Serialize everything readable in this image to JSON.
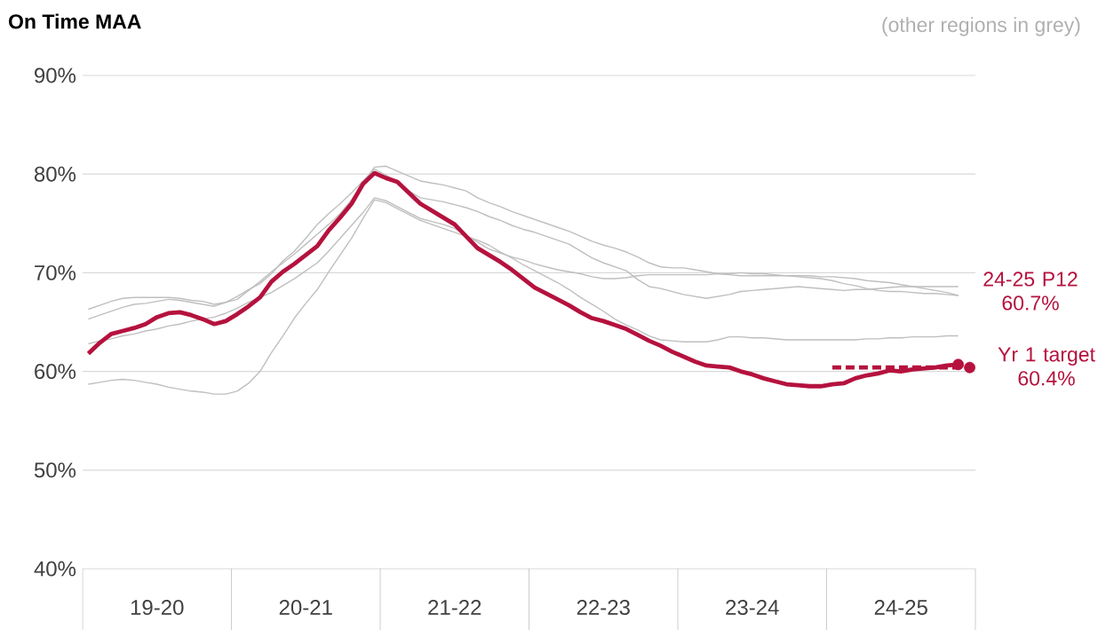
{
  "chart_data": {
    "type": "line",
    "title": "On Time MAA",
    "categories": [
      null,
      null,
      null,
      null,
      null,
      null,
      "19-20",
      null,
      null,
      null,
      null,
      null,
      null,
      null,
      null,
      null,
      null,
      null,
      null,
      "20-21",
      null,
      null,
      null,
      null,
      null,
      null,
      null,
      null,
      null,
      null,
      null,
      null,
      "21-22",
      null,
      null,
      null,
      null,
      null,
      null,
      null,
      null,
      null,
      null,
      null,
      null,
      "22-23",
      null,
      null,
      null,
      null,
      null,
      null,
      null,
      null,
      null,
      null,
      null,
      null,
      "23-24",
      null,
      null,
      null,
      null,
      null,
      null,
      null,
      null,
      null,
      null,
      null,
      null,
      "24-25",
      null,
      null,
      null,
      null,
      null,
      null
    ],
    "ylim": [
      40,
      90
    ],
    "yticks": [
      {
        "value": 40,
        "label": "40%"
      },
      {
        "value": 50,
        "label": "50%"
      },
      {
        "value": 60,
        "label": "60%"
      },
      {
        "value": 70,
        "label": "70%"
      },
      {
        "value": 80,
        "label": "80%"
      },
      {
        "value": 90,
        "label": "90%"
      }
    ],
    "grid": "y",
    "series": [
      {
        "color": "#bfbfbf",
        "values": [
          66.3,
          66.7,
          67.1,
          67.4,
          67.5,
          67.5,
          67.5,
          67.5,
          67.4,
          67.2,
          67.1,
          66.8,
          67.0,
          67.3,
          68.2,
          69.1,
          70.1,
          71.0,
          71.9,
          72.9,
          73.9,
          74.9,
          76.0,
          77.4,
          79.1,
          80.7,
          80.8,
          80.3,
          79.8,
          79.3,
          79.1,
          78.9,
          78.6,
          78.3,
          77.6,
          77.1,
          76.7,
          76.2,
          75.8,
          75.4,
          75.0,
          74.6,
          74.2,
          73.7,
          73.2,
          72.8,
          72.5,
          72.1,
          71.6,
          71.0,
          70.6,
          70.5,
          70.5,
          70.3,
          70.1,
          69.9,
          69.8,
          69.7,
          69.7,
          69.7,
          69.7,
          69.7,
          69.7,
          69.7,
          69.6,
          69.6,
          69.5,
          69.4,
          69.2,
          69.1,
          69.0,
          68.8,
          68.6,
          68.4,
          68.2,
          68.0,
          67.7,
          null
        ]
      },
      {
        "color": "#bfbfbf",
        "values": [
          65.3,
          65.7,
          66.1,
          66.5,
          66.8,
          66.9,
          67.1,
          67.3,
          67.2,
          67.0,
          66.8,
          66.6,
          67.0,
          67.6,
          68.3,
          68.9,
          69.9,
          71.2,
          72.2,
          73.5,
          74.9,
          76.0,
          77.0,
          78.1,
          79.3,
          80.5,
          79.9,
          79.1,
          78.3,
          77.6,
          77.4,
          77.2,
          76.9,
          76.6,
          76.2,
          75.7,
          75.3,
          74.8,
          74.4,
          74.1,
          73.7,
          73.3,
          72.9,
          72.2,
          71.5,
          71.0,
          70.6,
          70.2,
          69.3,
          68.6,
          68.4,
          68.1,
          67.8,
          67.6,
          67.4,
          67.6,
          67.8,
          68.1,
          68.2,
          68.3,
          68.4,
          68.5,
          68.6,
          68.5,
          68.4,
          68.3,
          68.2,
          68.3,
          68.3,
          68.4,
          68.5,
          68.6,
          68.6,
          68.6,
          68.6,
          68.6,
          68.6,
          null
        ]
      },
      {
        "color": "#bfbfbf",
        "values": [
          62.8,
          63.1,
          63.3,
          63.6,
          63.8,
          64.1,
          64.3,
          64.6,
          64.8,
          65.1,
          65.3,
          65.5,
          65.9,
          66.4,
          67.0,
          67.5,
          68.0,
          68.7,
          69.4,
          70.2,
          71.0,
          72.2,
          73.5,
          74.8,
          76.1,
          77.6,
          77.3,
          76.7,
          76.1,
          75.5,
          75.2,
          74.9,
          74.5,
          73.8,
          73.1,
          72.4,
          72.0,
          71.6,
          71.3,
          70.9,
          70.6,
          70.3,
          70.1,
          69.9,
          69.6,
          69.4,
          69.4,
          69.5,
          69.7,
          69.8,
          69.8,
          69.8,
          69.8,
          69.8,
          69.8,
          69.9,
          69.9,
          70.0,
          69.9,
          69.9,
          69.8,
          69.7,
          69.6,
          69.5,
          69.4,
          69.2,
          68.9,
          68.7,
          68.4,
          68.2,
          68.1,
          68.1,
          68.0,
          67.9,
          67.9,
          67.8,
          67.7,
          null
        ]
      },
      {
        "color": "#bfbfbf",
        "values": [
          58.7,
          58.9,
          59.1,
          59.2,
          59.1,
          58.9,
          58.7,
          58.4,
          58.2,
          58.0,
          57.9,
          57.7,
          57.7,
          58.0,
          58.8,
          60.0,
          61.9,
          63.6,
          65.4,
          66.9,
          68.3,
          70.1,
          71.8,
          73.5,
          75.5,
          77.4,
          77.1,
          76.5,
          75.9,
          75.3,
          74.9,
          74.5,
          74.1,
          73.7,
          73.3,
          72.8,
          72.1,
          71.5,
          70.8,
          70.2,
          69.6,
          69.0,
          68.3,
          67.5,
          66.8,
          66.1,
          65.3,
          64.7,
          64.2,
          63.6,
          63.2,
          63.1,
          63.0,
          63.0,
          63.0,
          63.2,
          63.5,
          63.5,
          63.4,
          63.4,
          63.3,
          63.2,
          63.2,
          63.2,
          63.2,
          63.2,
          63.2,
          63.2,
          63.3,
          63.3,
          63.4,
          63.4,
          63.5,
          63.5,
          63.5,
          63.6,
          63.6,
          null
        ]
      },
      {
        "color": "#b5123e",
        "values": [
          61.8,
          62.9,
          63.8,
          64.1,
          64.4,
          64.8,
          65.5,
          65.9,
          66.0,
          65.7,
          65.3,
          64.8,
          65.1,
          65.8,
          66.6,
          67.5,
          69.1,
          70.1,
          70.9,
          71.8,
          72.7,
          74.3,
          75.6,
          77.0,
          79.0,
          80.1,
          79.6,
          79.2,
          78.1,
          77.0,
          76.3,
          75.6,
          74.9,
          73.7,
          72.5,
          71.8,
          71.1,
          70.3,
          69.4,
          68.5,
          67.9,
          67.3,
          66.7,
          66.0,
          65.4,
          65.1,
          64.7,
          64.3,
          63.7,
          63.1,
          62.6,
          62.0,
          61.5,
          61.0,
          60.6,
          60.5,
          60.4,
          60.0,
          59.7,
          59.3,
          59.0,
          58.7,
          58.6,
          58.5,
          58.5,
          58.7,
          58.8,
          59.3,
          59.6,
          59.8,
          60.1,
          60.0,
          60.2,
          60.3,
          60.4,
          60.6,
          60.7,
          null
        ]
      },
      {
        "type": "scatter",
        "color": "#b5123e",
        "values": [
          null,
          null,
          null,
          null,
          null,
          null,
          null,
          null,
          null,
          null,
          null,
          null,
          null,
          null,
          null,
          null,
          null,
          null,
          null,
          null,
          null,
          null,
          null,
          null,
          null,
          null,
          null,
          null,
          null,
          null,
          null,
          null,
          null,
          null,
          null,
          null,
          null,
          null,
          null,
          null,
          null,
          null,
          null,
          null,
          null,
          null,
          null,
          null,
          null,
          null,
          null,
          null,
          null,
          null,
          null,
          null,
          null,
          null,
          null,
          null,
          null,
          null,
          null,
          null,
          null,
          null,
          null,
          null,
          null,
          null,
          null,
          null,
          null,
          null,
          null,
          null,
          60.7,
          null
        ]
      },
      {
        "color": "#b5123e",
        "line_style": "dashed",
        "values": [
          null,
          null,
          null,
          null,
          null,
          null,
          null,
          null,
          null,
          null,
          null,
          null,
          null,
          null,
          null,
          null,
          null,
          null,
          null,
          null,
          null,
          null,
          null,
          null,
          null,
          null,
          null,
          null,
          null,
          null,
          null,
          null,
          null,
          null,
          null,
          null,
          null,
          null,
          null,
          null,
          null,
          null,
          null,
          null,
          null,
          null,
          null,
          null,
          null,
          null,
          null,
          null,
          null,
          null,
          null,
          null,
          null,
          null,
          null,
          null,
          null,
          null,
          null,
          null,
          null,
          60.4,
          60.4,
          60.4,
          60.4,
          60.4,
          60.4,
          60.4,
          60.4,
          60.4,
          60.4,
          60.4,
          60.4,
          null
        ]
      },
      {
        "type": "scatter",
        "color": "#b5123e",
        "values": [
          null,
          null,
          null,
          null,
          null,
          null,
          null,
          null,
          null,
          null,
          null,
          null,
          null,
          null,
          null,
          null,
          null,
          null,
          null,
          null,
          null,
          null,
          null,
          null,
          null,
          null,
          null,
          null,
          null,
          null,
          null,
          null,
          null,
          null,
          null,
          null,
          null,
          null,
          null,
          null,
          null,
          null,
          null,
          null,
          null,
          null,
          null,
          null,
          null,
          null,
          null,
          null,
          null,
          null,
          null,
          null,
          null,
          null,
          null,
          null,
          null,
          null,
          null,
          null,
          null,
          null,
          null,
          null,
          null,
          null,
          null,
          null,
          null,
          null,
          null,
          null,
          null,
          60.4
        ]
      }
    ],
    "annotations": [
      "(other regions in grey)",
      "24-25 P12 60.7%",
      "Yr 1 target 60.4%"
    ]
  }
}
